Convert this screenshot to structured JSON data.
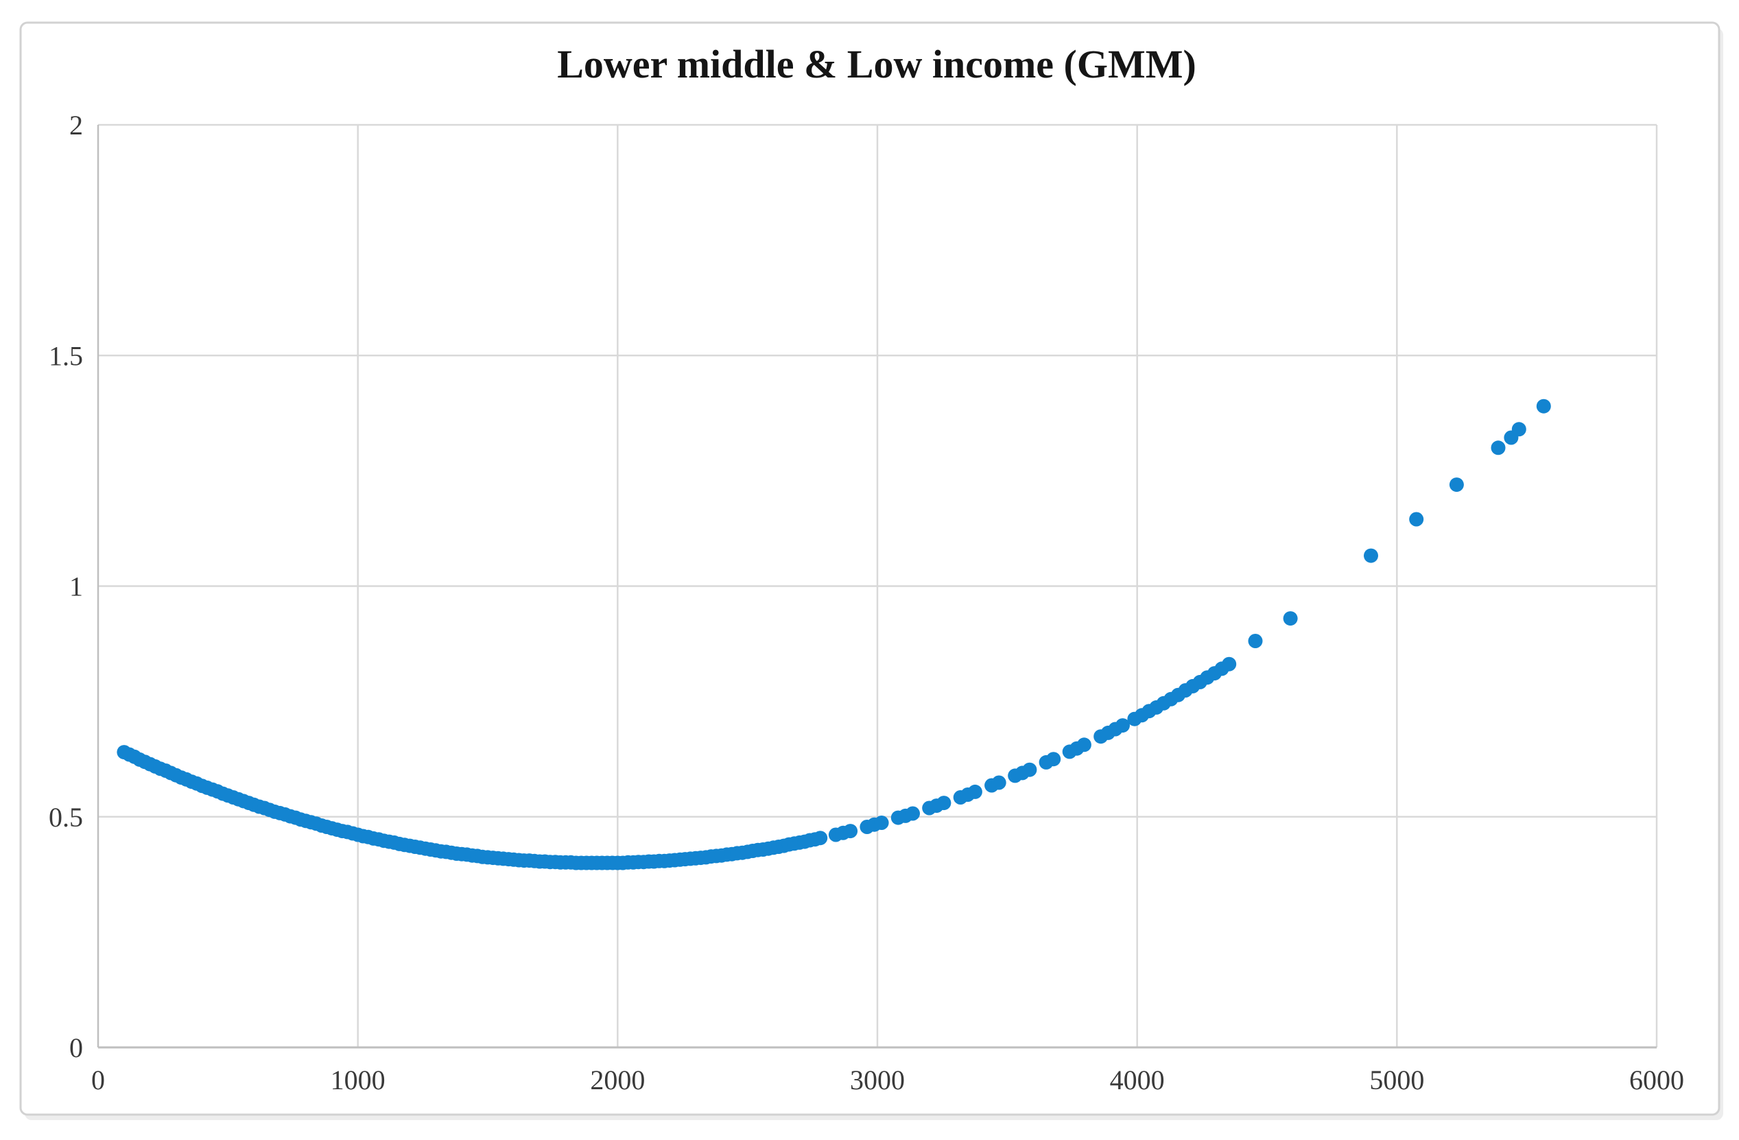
{
  "chart_data": {
    "type": "scatter",
    "title": "Lower middle & Low income (GMM)",
    "xlabel": "",
    "ylabel": "",
    "xlim": [
      0,
      6000
    ],
    "ylim": [
      0,
      2
    ],
    "x_ticks": [
      0,
      1000,
      2000,
      3000,
      4000,
      5000,
      6000
    ],
    "y_ticks": [
      0,
      0.5,
      1,
      1.5,
      2
    ],
    "grid": true,
    "legend_position": "none",
    "series_name": "GMM fitted values",
    "colors": {
      "marker": "#1384D0",
      "gridline": "#D9D9D9",
      "axis_line": "#BFBFBF",
      "tick_label": "#3A3A3A",
      "title": "#151515",
      "frame_border": "#D2D2D2",
      "frame_shadow": "#EDEDED",
      "plot_background": "#FFFFFF"
    },
    "points": [
      [
        100,
        0.64
      ],
      [
        120,
        0.635
      ],
      [
        140,
        0.63
      ],
      [
        160,
        0.624
      ],
      [
        180,
        0.619
      ],
      [
        200,
        0.614
      ],
      [
        220,
        0.609
      ],
      [
        240,
        0.604
      ],
      [
        260,
        0.6
      ],
      [
        280,
        0.595
      ],
      [
        300,
        0.59
      ],
      [
        320,
        0.585
      ],
      [
        340,
        0.581
      ],
      [
        360,
        0.576
      ],
      [
        380,
        0.572
      ],
      [
        400,
        0.567
      ],
      [
        420,
        0.563
      ],
      [
        440,
        0.559
      ],
      [
        460,
        0.555
      ],
      [
        480,
        0.55
      ],
      [
        500,
        0.546
      ],
      [
        520,
        0.542
      ],
      [
        540,
        0.538
      ],
      [
        560,
        0.534
      ],
      [
        580,
        0.53
      ],
      [
        600,
        0.526
      ],
      [
        620,
        0.522
      ],
      [
        640,
        0.519
      ],
      [
        660,
        0.515
      ],
      [
        680,
        0.511
      ],
      [
        700,
        0.508
      ],
      [
        720,
        0.505
      ],
      [
        740,
        0.501
      ],
      [
        760,
        0.498
      ],
      [
        780,
        0.494
      ],
      [
        800,
        0.491
      ],
      [
        820,
        0.488
      ],
      [
        840,
        0.485
      ],
      [
        860,
        0.481
      ],
      [
        880,
        0.478
      ],
      [
        900,
        0.475
      ],
      [
        920,
        0.472
      ],
      [
        940,
        0.469
      ],
      [
        960,
        0.467
      ],
      [
        980,
        0.464
      ],
      [
        1000,
        0.461
      ],
      [
        1020,
        0.458
      ],
      [
        1040,
        0.456
      ],
      [
        1060,
        0.453
      ],
      [
        1080,
        0.451
      ],
      [
        1100,
        0.448
      ],
      [
        1120,
        0.446
      ],
      [
        1140,
        0.444
      ],
      [
        1160,
        0.441
      ],
      [
        1180,
        0.439
      ],
      [
        1200,
        0.437
      ],
      [
        1220,
        0.435
      ],
      [
        1240,
        0.433
      ],
      [
        1260,
        0.431
      ],
      [
        1280,
        0.429
      ],
      [
        1300,
        0.427
      ],
      [
        1320,
        0.425
      ],
      [
        1340,
        0.424
      ],
      [
        1360,
        0.422
      ],
      [
        1380,
        0.42
      ],
      [
        1400,
        0.419
      ],
      [
        1420,
        0.418
      ],
      [
        1440,
        0.416
      ],
      [
        1460,
        0.415
      ],
      [
        1480,
        0.413
      ],
      [
        1500,
        0.412
      ],
      [
        1520,
        0.411
      ],
      [
        1540,
        0.41
      ],
      [
        1560,
        0.409
      ],
      [
        1580,
        0.408
      ],
      [
        1600,
        0.407
      ],
      [
        1620,
        0.406
      ],
      [
        1640,
        0.405
      ],
      [
        1660,
        0.405
      ],
      [
        1680,
        0.404
      ],
      [
        1700,
        0.403
      ],
      [
        1720,
        0.403
      ],
      [
        1740,
        0.402
      ],
      [
        1760,
        0.402
      ],
      [
        1780,
        0.401
      ],
      [
        1800,
        0.401
      ],
      [
        1820,
        0.401
      ],
      [
        1840,
        0.4
      ],
      [
        1860,
        0.4
      ],
      [
        1880,
        0.4
      ],
      [
        1900,
        0.4
      ],
      [
        1920,
        0.4
      ],
      [
        1940,
        0.4
      ],
      [
        1960,
        0.4
      ],
      [
        1980,
        0.4
      ],
      [
        2000,
        0.4
      ],
      [
        2020,
        0.4
      ],
      [
        2040,
        0.401
      ],
      [
        2060,
        0.401
      ],
      [
        2080,
        0.402
      ],
      [
        2100,
        0.402
      ],
      [
        2120,
        0.403
      ],
      [
        2140,
        0.403
      ],
      [
        2160,
        0.404
      ],
      [
        2180,
        0.404
      ],
      [
        2200,
        0.405
      ],
      [
        2220,
        0.406
      ],
      [
        2240,
        0.407
      ],
      [
        2260,
        0.408
      ],
      [
        2280,
        0.409
      ],
      [
        2300,
        0.41
      ],
      [
        2320,
        0.411
      ],
      [
        2340,
        0.412
      ],
      [
        2360,
        0.414
      ],
      [
        2380,
        0.415
      ],
      [
        2400,
        0.416
      ],
      [
        2420,
        0.418
      ],
      [
        2440,
        0.419
      ],
      [
        2460,
        0.421
      ],
      [
        2480,
        0.422
      ],
      [
        2500,
        0.424
      ],
      [
        2520,
        0.426
      ],
      [
        2540,
        0.428
      ],
      [
        2560,
        0.429
      ],
      [
        2580,
        0.431
      ],
      [
        2600,
        0.433
      ],
      [
        2620,
        0.435
      ],
      [
        2640,
        0.437
      ],
      [
        2660,
        0.44
      ],
      [
        2680,
        0.442
      ],
      [
        2700,
        0.444
      ],
      [
        2720,
        0.446
      ],
      [
        2740,
        0.449
      ],
      [
        2760,
        0.451
      ],
      [
        2780,
        0.454
      ],
      [
        2840,
        0.461
      ],
      [
        2868,
        0.465
      ],
      [
        2896,
        0.469
      ],
      [
        2960,
        0.478
      ],
      [
        2988,
        0.483
      ],
      [
        3016,
        0.487
      ],
      [
        3080,
        0.498
      ],
      [
        3108,
        0.502
      ],
      [
        3136,
        0.507
      ],
      [
        3200,
        0.519
      ],
      [
        3228,
        0.524
      ],
      [
        3256,
        0.53
      ],
      [
        3320,
        0.542
      ],
      [
        3348,
        0.548
      ],
      [
        3376,
        0.554
      ],
      [
        3440,
        0.568
      ],
      [
        3468,
        0.574
      ],
      [
        3530,
        0.589
      ],
      [
        3558,
        0.595
      ],
      [
        3586,
        0.602
      ],
      [
        3650,
        0.618
      ],
      [
        3678,
        0.625
      ],
      [
        3740,
        0.641
      ],
      [
        3768,
        0.648
      ],
      [
        3796,
        0.656
      ],
      [
        3860,
        0.674
      ],
      [
        3888,
        0.682
      ],
      [
        3916,
        0.69
      ],
      [
        3944,
        0.698
      ],
      [
        3990,
        0.712
      ],
      [
        4018,
        0.72
      ],
      [
        4046,
        0.729
      ],
      [
        4074,
        0.737
      ],
      [
        4102,
        0.746
      ],
      [
        4130,
        0.755
      ],
      [
        4158,
        0.764
      ],
      [
        4186,
        0.774
      ],
      [
        4214,
        0.783
      ],
      [
        4242,
        0.792
      ],
      [
        4270,
        0.802
      ],
      [
        4298,
        0.811
      ],
      [
        4326,
        0.821
      ],
      [
        4354,
        0.831
      ],
      [
        4455,
        0.881
      ],
      [
        4590,
        0.93
      ],
      [
        4900,
        1.066
      ],
      [
        5075,
        1.145
      ],
      [
        5230,
        1.22
      ],
      [
        5390,
        1.3
      ],
      [
        5440,
        1.322
      ],
      [
        5470,
        1.34
      ],
      [
        5565,
        1.39
      ]
    ]
  }
}
